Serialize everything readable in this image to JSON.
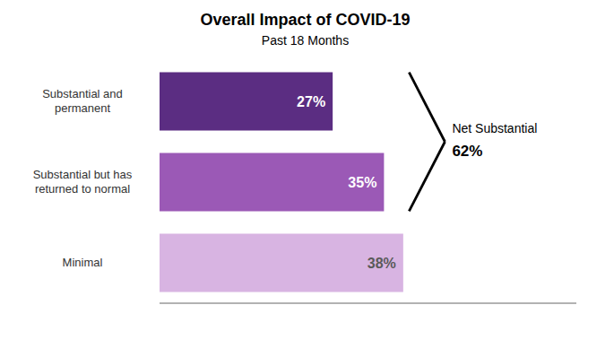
{
  "chart_data": {
    "type": "bar",
    "orientation": "horizontal",
    "title": "Overall Impact of COVID-19",
    "subtitle": "Past 18 Months",
    "categories": [
      "Substantial and\npermanent",
      "Substantial but has\nreturned to normal",
      "Minimal"
    ],
    "values": [
      27,
      35,
      38
    ],
    "value_labels": [
      "27%",
      "35%",
      "38%"
    ],
    "colors": [
      "#5b2d82",
      "#9b59b6",
      "#d8b4e2"
    ],
    "data_labels": true,
    "xlim": [
      0,
      65
    ],
    "tick_labels": "y",
    "grid": false,
    "annotations": [
      "Net Substantial",
      "62%"
    ]
  }
}
